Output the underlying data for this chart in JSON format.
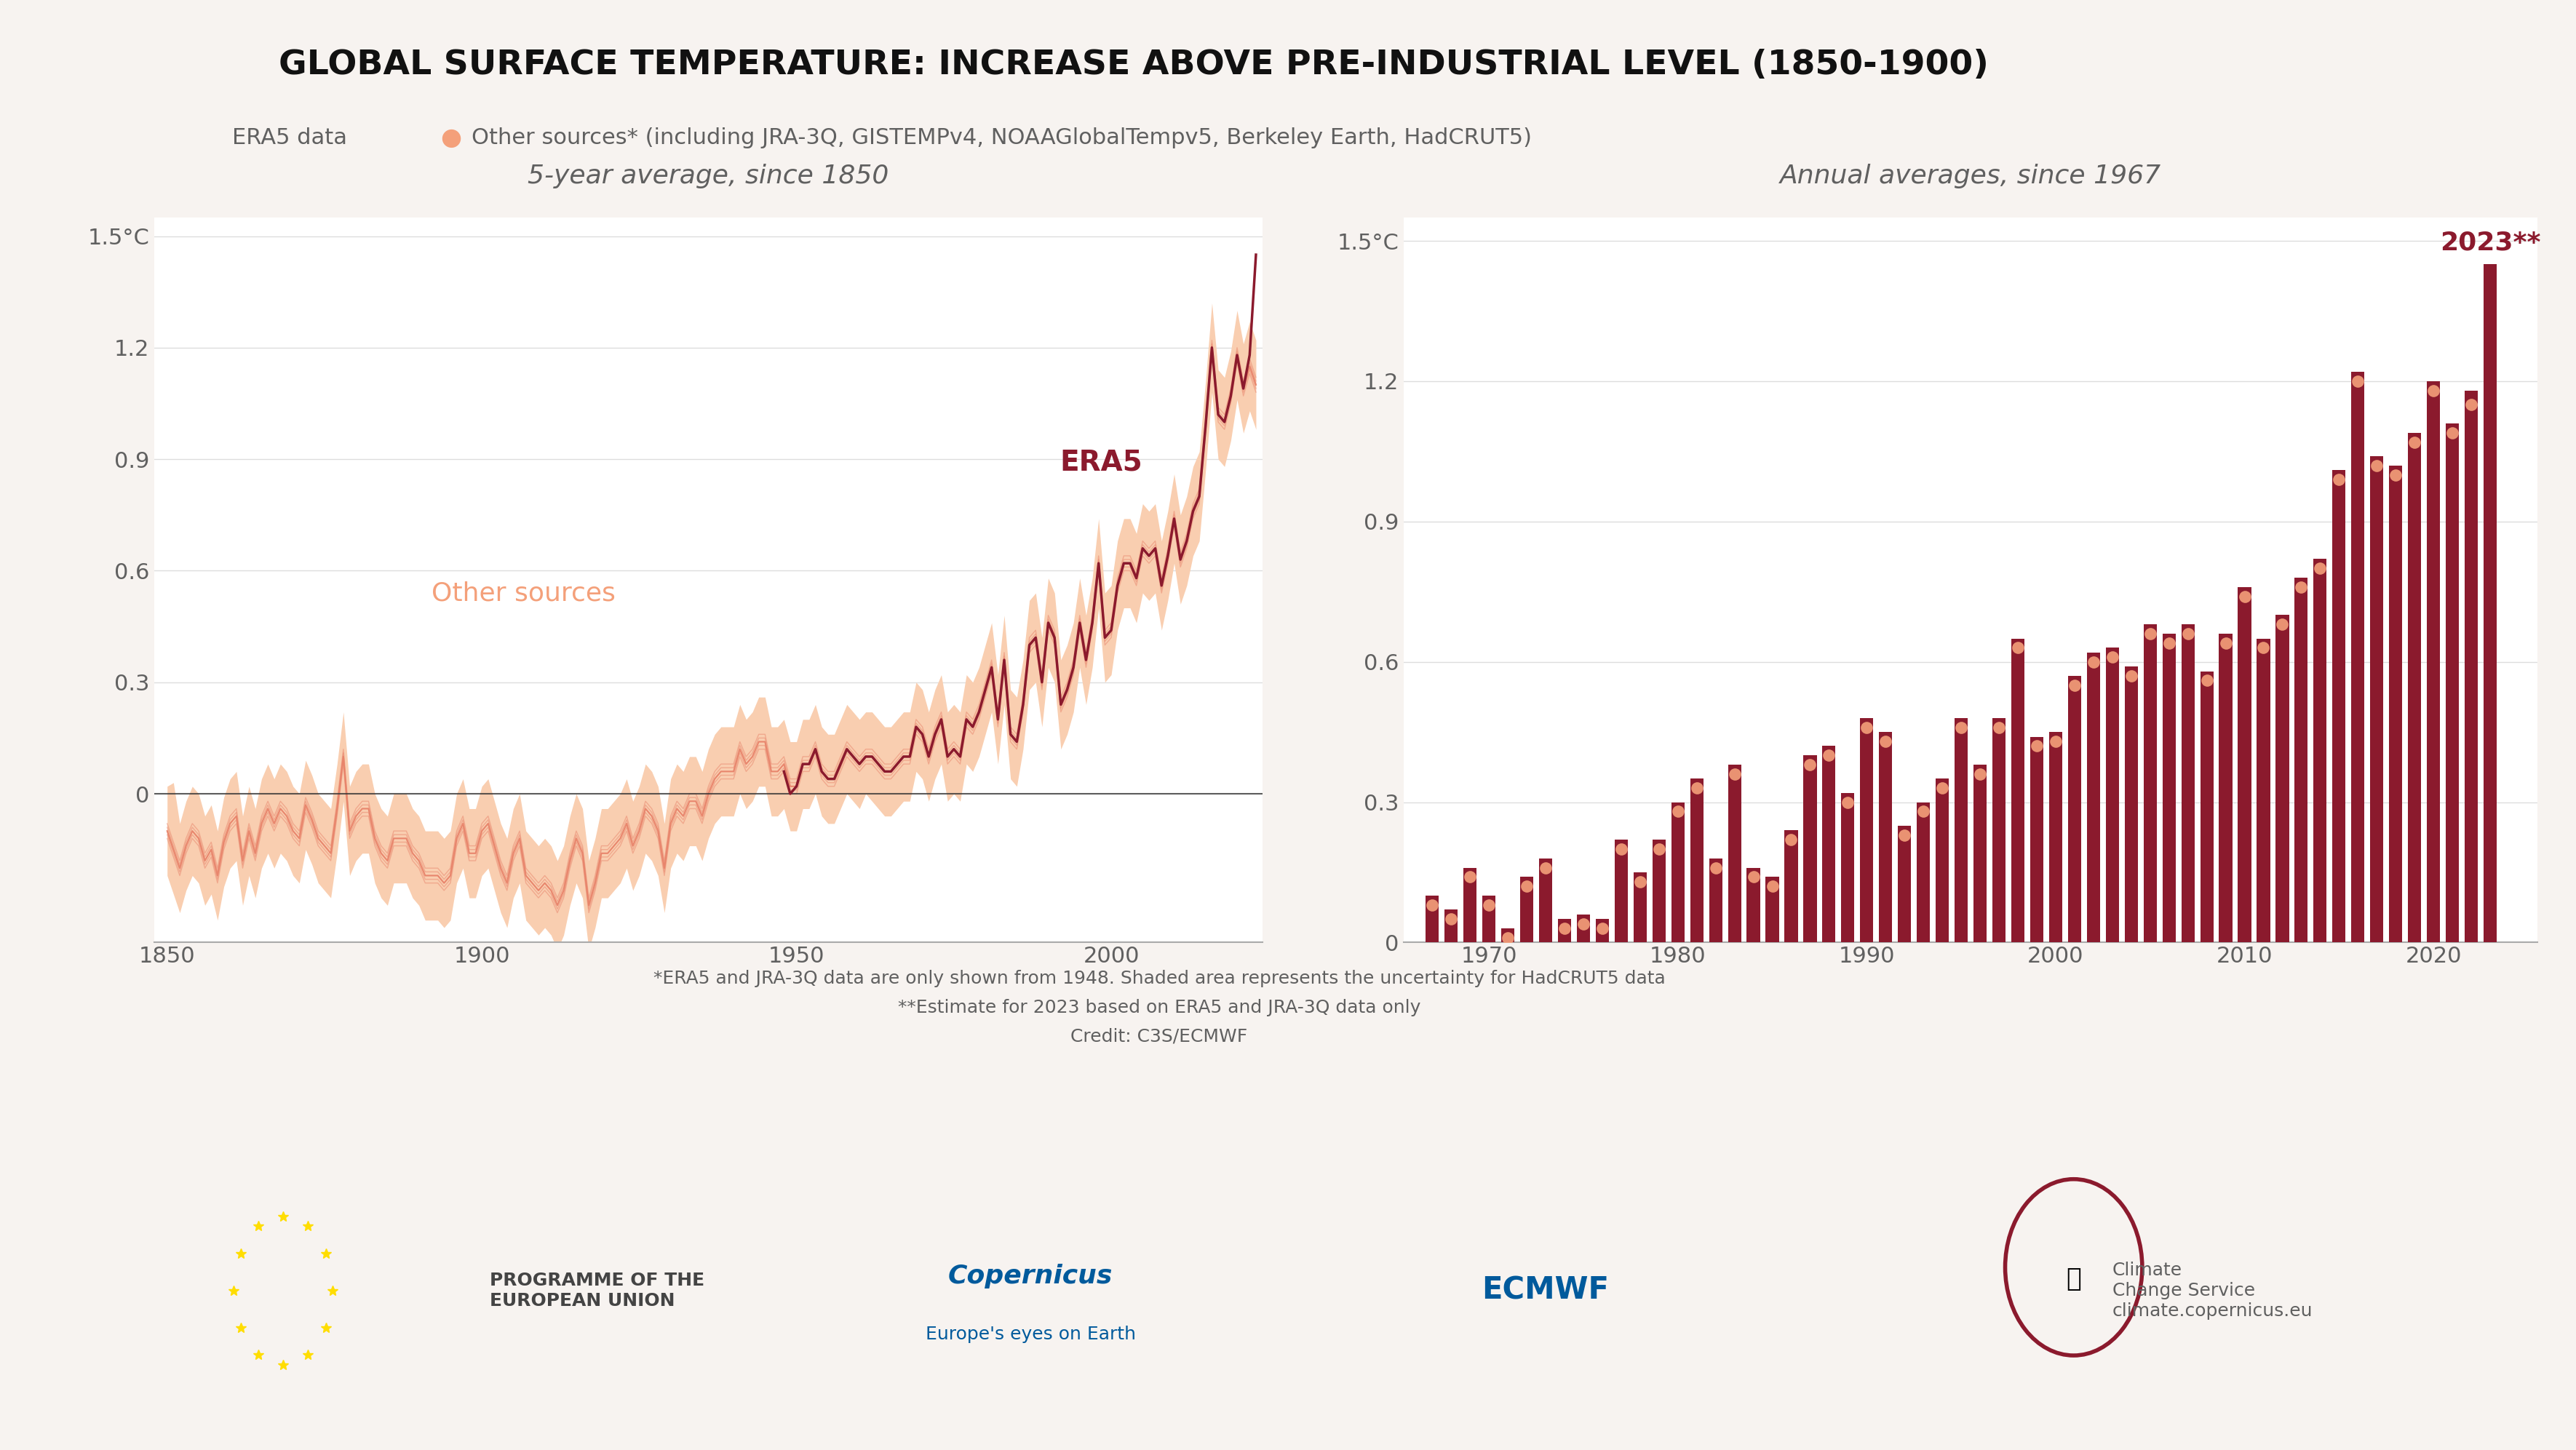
{
  "title": "GLOBAL SURFACE TEMPERATURE: INCREASE ABOVE PRE-INDUSTRIAL LEVEL (1850-1900)",
  "legend_era5": "ERA5 data",
  "legend_other": "Other sources* (including JRA-3Q, GISTEMPv4, NOAAGlobalTempv5, Berkeley Earth, HadCRUT5)",
  "left_subtitle": "5-year average, since 1850",
  "right_subtitle": "Annual averages, since 1967",
  "footnote1": "*ERA5 and JRA-3Q data are only shown from 1948. Shaded area represents the uncertainty for HadCRUT5 data",
  "footnote2": "**Estimate for 2023 based on ERA5 and JRA-3Q data only",
  "footnote3": "Credit: C3S/ECMWF",
  "era5_color": "#8B1A2D",
  "other_color": "#F4A07A",
  "other_line_color": "#E8836A",
  "other_shade_color": "#F9CEB0",
  "ylim_left": [
    -0.4,
    1.55
  ],
  "ylim_right": [
    0.0,
    1.55
  ],
  "yticks_left": [
    0.0,
    0.3,
    0.6,
    0.9,
    1.2
  ],
  "ytick_labels_left": [
    "0",
    "0.3",
    "0.6",
    "0.9",
    "1.2"
  ],
  "ytick_top_left": 1.5,
  "ytick_top_label_left": "1.5°C",
  "yticks_right": [
    0.0,
    0.3,
    0.6,
    0.9,
    1.2
  ],
  "ytick_labels_right": [
    "0",
    "0.3",
    "0.6",
    "0.9",
    "1.2"
  ],
  "ytick_top_right": 1.5,
  "ytick_top_label_right": "1.5°C",
  "bg_color": "#F7F3F0",
  "plot_bg_color": "#FFFFFF",
  "text_color": "#606060",
  "title_color": "#111111",
  "era5_annotation": "ERA5",
  "other_annotation": "Other sources",
  "year_2023_label": "2023**",
  "zero_line_color": "#333333",
  "left_years": [
    1850,
    1851,
    1852,
    1853,
    1854,
    1855,
    1856,
    1857,
    1858,
    1859,
    1860,
    1861,
    1862,
    1863,
    1864,
    1865,
    1866,
    1867,
    1868,
    1869,
    1870,
    1871,
    1872,
    1873,
    1874,
    1875,
    1876,
    1877,
    1878,
    1879,
    1880,
    1881,
    1882,
    1883,
    1884,
    1885,
    1886,
    1887,
    1888,
    1889,
    1890,
    1891,
    1892,
    1893,
    1894,
    1895,
    1896,
    1897,
    1898,
    1899,
    1900,
    1901,
    1902,
    1903,
    1904,
    1905,
    1906,
    1907,
    1908,
    1909,
    1910,
    1911,
    1912,
    1913,
    1914,
    1915,
    1916,
    1917,
    1918,
    1919,
    1920,
    1921,
    1922,
    1923,
    1924,
    1925,
    1926,
    1927,
    1928,
    1929,
    1930,
    1931,
    1932,
    1933,
    1934,
    1935,
    1936,
    1937,
    1938,
    1939,
    1940,
    1941,
    1942,
    1943,
    1944,
    1945,
    1946,
    1947,
    1948,
    1949,
    1950,
    1951,
    1952,
    1953,
    1954,
    1955,
    1956,
    1957,
    1958,
    1959,
    1960,
    1961,
    1962,
    1963,
    1964,
    1965,
    1966,
    1967,
    1968,
    1969,
    1970,
    1971,
    1972,
    1973,
    1974,
    1975,
    1976,
    1977,
    1978,
    1979,
    1980,
    1981,
    1982,
    1983,
    1984,
    1985,
    1986,
    1987,
    1988,
    1989,
    1990,
    1991,
    1992,
    1993,
    1994,
    1995,
    1996,
    1997,
    1998,
    1999,
    2000,
    2001,
    2002,
    2003,
    2004,
    2005,
    2006,
    2007,
    2008,
    2009,
    2010,
    2011,
    2012,
    2013,
    2014,
    2015,
    2016,
    2017,
    2018,
    2019,
    2020,
    2021,
    2022,
    2023
  ],
  "left_other_mean": [
    -0.1,
    -0.15,
    -0.2,
    -0.14,
    -0.1,
    -0.12,
    -0.18,
    -0.15,
    -0.22,
    -0.13,
    -0.08,
    -0.06,
    -0.18,
    -0.1,
    -0.16,
    -0.08,
    -0.04,
    -0.08,
    -0.04,
    -0.06,
    -0.1,
    -0.12,
    -0.03,
    -0.07,
    -0.12,
    -0.14,
    -0.16,
    -0.04,
    0.1,
    -0.1,
    -0.06,
    -0.04,
    -0.04,
    -0.12,
    -0.16,
    -0.18,
    -0.12,
    -0.12,
    -0.12,
    -0.16,
    -0.18,
    -0.22,
    -0.22,
    -0.22,
    -0.24,
    -0.22,
    -0.12,
    -0.08,
    -0.16,
    -0.16,
    -0.1,
    -0.08,
    -0.14,
    -0.2,
    -0.24,
    -0.16,
    -0.12,
    -0.22,
    -0.24,
    -0.26,
    -0.24,
    -0.26,
    -0.3,
    -0.26,
    -0.18,
    -0.12,
    -0.16,
    -0.3,
    -0.24,
    -0.16,
    -0.16,
    -0.14,
    -0.12,
    -0.08,
    -0.14,
    -0.1,
    -0.04,
    -0.06,
    -0.1,
    -0.2,
    -0.08,
    -0.04,
    -0.06,
    -0.02,
    -0.02,
    -0.06,
    0.0,
    0.04,
    0.06,
    0.06,
    0.06,
    0.12,
    0.08,
    0.1,
    0.14,
    0.14,
    0.06,
    0.06,
    0.08,
    0.02,
    0.02,
    0.08,
    0.08,
    0.12,
    0.06,
    0.04,
    0.04,
    0.08,
    0.12,
    0.1,
    0.08,
    0.1,
    0.1,
    0.08,
    0.06,
    0.06,
    0.08,
    0.1,
    0.1,
    0.18,
    0.16,
    0.1,
    0.16,
    0.2,
    0.1,
    0.12,
    0.1,
    0.2,
    0.18,
    0.22,
    0.28,
    0.34,
    0.2,
    0.36,
    0.16,
    0.14,
    0.24,
    0.4,
    0.42,
    0.3,
    0.46,
    0.42,
    0.24,
    0.28,
    0.34,
    0.46,
    0.36,
    0.46,
    0.62,
    0.42,
    0.44,
    0.56,
    0.62,
    0.62,
    0.58,
    0.66,
    0.64,
    0.66,
    0.56,
    0.64,
    0.74,
    0.63,
    0.68,
    0.76,
    0.8,
    0.99,
    1.2,
    1.02,
    1.0,
    1.07,
    1.18,
    1.09,
    1.15,
    1.1
  ],
  "left_other_low": [
    -0.22,
    -0.27,
    -0.32,
    -0.26,
    -0.22,
    -0.24,
    -0.3,
    -0.27,
    -0.34,
    -0.25,
    -0.2,
    -0.18,
    -0.3,
    -0.22,
    -0.28,
    -0.2,
    -0.16,
    -0.2,
    -0.16,
    -0.18,
    -0.22,
    -0.24,
    -0.15,
    -0.19,
    -0.24,
    -0.26,
    -0.28,
    -0.16,
    -0.02,
    -0.22,
    -0.18,
    -0.16,
    -0.16,
    -0.24,
    -0.28,
    -0.3,
    -0.24,
    -0.24,
    -0.24,
    -0.28,
    -0.3,
    -0.34,
    -0.34,
    -0.34,
    -0.36,
    -0.34,
    -0.24,
    -0.2,
    -0.28,
    -0.28,
    -0.22,
    -0.2,
    -0.26,
    -0.32,
    -0.36,
    -0.28,
    -0.24,
    -0.34,
    -0.36,
    -0.38,
    -0.36,
    -0.38,
    -0.42,
    -0.38,
    -0.3,
    -0.24,
    -0.28,
    -0.42,
    -0.36,
    -0.28,
    -0.28,
    -0.26,
    -0.24,
    -0.2,
    -0.26,
    -0.22,
    -0.16,
    -0.18,
    -0.22,
    -0.32,
    -0.2,
    -0.16,
    -0.18,
    -0.14,
    -0.14,
    -0.18,
    -0.12,
    -0.08,
    -0.06,
    -0.06,
    -0.06,
    0.0,
    -0.04,
    -0.02,
    0.02,
    0.02,
    -0.06,
    -0.06,
    -0.04,
    -0.1,
    -0.1,
    -0.04,
    -0.04,
    0.0,
    -0.06,
    -0.08,
    -0.08,
    -0.04,
    0.0,
    -0.02,
    -0.04,
    0.0,
    -0.02,
    -0.04,
    -0.06,
    -0.06,
    -0.04,
    -0.02,
    -0.02,
    0.06,
    0.04,
    -0.02,
    0.04,
    0.08,
    -0.02,
    0.0,
    -0.02,
    0.08,
    0.06,
    0.1,
    0.16,
    0.22,
    0.08,
    0.24,
    0.04,
    0.02,
    0.12,
    0.28,
    0.3,
    0.18,
    0.34,
    0.3,
    0.12,
    0.16,
    0.22,
    0.34,
    0.24,
    0.34,
    0.5,
    0.3,
    0.32,
    0.44,
    0.5,
    0.5,
    0.46,
    0.54,
    0.52,
    0.54,
    0.44,
    0.52,
    0.62,
    0.51,
    0.56,
    0.64,
    0.68,
    0.87,
    1.08,
    0.9,
    0.88,
    0.95,
    1.06,
    0.97,
    1.03,
    0.98
  ],
  "left_other_high": [
    0.02,
    0.03,
    -0.08,
    -0.02,
    0.02,
    0.0,
    -0.06,
    -0.03,
    -0.1,
    -0.01,
    0.04,
    0.06,
    -0.06,
    0.02,
    -0.04,
    0.04,
    0.08,
    0.04,
    0.08,
    0.06,
    0.02,
    0.0,
    0.09,
    0.05,
    0.0,
    -0.02,
    -0.04,
    0.08,
    0.22,
    0.02,
    0.06,
    0.08,
    0.08,
    0.0,
    -0.04,
    -0.06,
    0.0,
    0.0,
    0.0,
    -0.04,
    -0.06,
    -0.1,
    -0.1,
    -0.1,
    -0.12,
    -0.1,
    0.0,
    0.04,
    -0.04,
    -0.04,
    0.02,
    0.04,
    -0.02,
    -0.08,
    -0.12,
    -0.04,
    0.0,
    -0.1,
    -0.12,
    -0.14,
    -0.12,
    -0.14,
    -0.18,
    -0.14,
    -0.06,
    0.0,
    -0.04,
    -0.18,
    -0.12,
    -0.04,
    -0.04,
    -0.02,
    0.0,
    0.04,
    -0.02,
    0.02,
    0.08,
    0.06,
    0.02,
    -0.08,
    0.04,
    0.08,
    0.06,
    0.1,
    0.1,
    0.06,
    0.12,
    0.16,
    0.18,
    0.18,
    0.18,
    0.24,
    0.2,
    0.22,
    0.26,
    0.26,
    0.18,
    0.18,
    0.2,
    0.14,
    0.14,
    0.2,
    0.2,
    0.24,
    0.18,
    0.16,
    0.16,
    0.2,
    0.24,
    0.22,
    0.2,
    0.22,
    0.22,
    0.2,
    0.18,
    0.18,
    0.2,
    0.22,
    0.22,
    0.3,
    0.28,
    0.22,
    0.28,
    0.32,
    0.22,
    0.24,
    0.22,
    0.32,
    0.3,
    0.34,
    0.4,
    0.46,
    0.32,
    0.48,
    0.28,
    0.26,
    0.36,
    0.52,
    0.54,
    0.42,
    0.58,
    0.54,
    0.36,
    0.4,
    0.46,
    0.58,
    0.48,
    0.58,
    0.74,
    0.54,
    0.56,
    0.68,
    0.74,
    0.74,
    0.7,
    0.78,
    0.76,
    0.78,
    0.68,
    0.76,
    0.86,
    0.75,
    0.8,
    0.88,
    0.92,
    1.11,
    1.32,
    1.14,
    1.12,
    1.19,
    1.3,
    1.21,
    1.27,
    1.22
  ],
  "left_era5": [
    null,
    null,
    null,
    null,
    null,
    null,
    null,
    null,
    null,
    null,
    null,
    null,
    null,
    null,
    null,
    null,
    null,
    null,
    null,
    null,
    null,
    null,
    null,
    null,
    null,
    null,
    null,
    null,
    null,
    null,
    null,
    null,
    null,
    null,
    null,
    null,
    null,
    null,
    null,
    null,
    null,
    null,
    null,
    null,
    null,
    null,
    null,
    null,
    null,
    null,
    null,
    null,
    null,
    null,
    null,
    null,
    null,
    null,
    null,
    null,
    null,
    null,
    null,
    null,
    null,
    null,
    null,
    null,
    null,
    null,
    null,
    null,
    null,
    null,
    null,
    null,
    null,
    null,
    null,
    null,
    null,
    null,
    null,
    null,
    null,
    null,
    null,
    null,
    null,
    null,
    null,
    null,
    null,
    null,
    null,
    null,
    null,
    null,
    0.06,
    0.0,
    0.02,
    0.08,
    0.08,
    0.12,
    0.06,
    0.04,
    0.04,
    0.08,
    0.12,
    0.1,
    0.08,
    0.1,
    0.1,
    0.08,
    0.06,
    0.06,
    0.08,
    0.1,
    0.1,
    0.18,
    0.16,
    0.1,
    0.16,
    0.2,
    0.1,
    0.12,
    0.1,
    0.2,
    0.18,
    0.22,
    0.28,
    0.34,
    0.2,
    0.36,
    0.16,
    0.14,
    0.24,
    0.4,
    0.42,
    0.3,
    0.46,
    0.42,
    0.24,
    0.28,
    0.34,
    0.46,
    0.36,
    0.46,
    0.62,
    0.42,
    0.44,
    0.56,
    0.62,
    0.62,
    0.58,
    0.66,
    0.64,
    0.66,
    0.56,
    0.64,
    0.74,
    0.63,
    0.68,
    0.76,
    0.8,
    0.99,
    1.2,
    1.02,
    1.0,
    1.07,
    1.18,
    1.09,
    1.18,
    1.45
  ],
  "right_years": [
    1967,
    1968,
    1969,
    1970,
    1971,
    1972,
    1973,
    1974,
    1975,
    1976,
    1977,
    1978,
    1979,
    1980,
    1981,
    1982,
    1983,
    1984,
    1985,
    1986,
    1987,
    1988,
    1989,
    1990,
    1991,
    1992,
    1993,
    1994,
    1995,
    1996,
    1997,
    1998,
    1999,
    2000,
    2001,
    2002,
    2003,
    2004,
    2005,
    2006,
    2007,
    2008,
    2009,
    2010,
    2011,
    2012,
    2013,
    2014,
    2015,
    2016,
    2017,
    2018,
    2019,
    2020,
    2021,
    2022,
    2023
  ],
  "right_era5": [
    0.1,
    0.07,
    0.16,
    0.1,
    0.03,
    0.14,
    0.18,
    0.05,
    0.06,
    0.05,
    0.22,
    0.15,
    0.22,
    0.3,
    0.35,
    0.18,
    0.38,
    0.16,
    0.14,
    0.24,
    0.4,
    0.42,
    0.32,
    0.48,
    0.45,
    0.25,
    0.3,
    0.35,
    0.48,
    0.38,
    0.48,
    0.65,
    0.44,
    0.45,
    0.57,
    0.62,
    0.63,
    0.59,
    0.68,
    0.66,
    0.68,
    0.58,
    0.66,
    0.76,
    0.65,
    0.7,
    0.78,
    0.82,
    1.01,
    1.22,
    1.04,
    1.02,
    1.09,
    1.2,
    1.11,
    1.18,
    1.45
  ],
  "right_other": [
    0.08,
    0.05,
    0.14,
    0.08,
    0.01,
    0.12,
    0.16,
    0.03,
    0.04,
    0.03,
    0.2,
    0.13,
    0.2,
    0.28,
    0.33,
    0.16,
    0.36,
    0.14,
    0.12,
    0.22,
    0.38,
    0.4,
    0.3,
    0.46,
    0.43,
    0.23,
    0.28,
    0.33,
    0.46,
    0.36,
    0.46,
    0.63,
    0.42,
    0.43,
    0.55,
    0.6,
    0.61,
    0.57,
    0.66,
    0.64,
    0.66,
    0.56,
    0.64,
    0.74,
    0.63,
    0.68,
    0.76,
    0.8,
    0.99,
    1.2,
    1.02,
    1.0,
    1.07,
    1.18,
    1.09,
    1.15,
    null
  ]
}
